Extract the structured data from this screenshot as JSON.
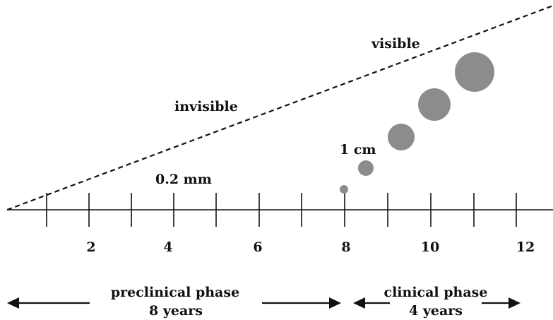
{
  "labels": {
    "visible": "visible",
    "invisible": "invisible",
    "size_small": "0.2 mm",
    "size_large": "1 cm"
  },
  "axis": {
    "tick_labels": [
      "2",
      "4",
      "6",
      "8",
      "10",
      "12"
    ]
  },
  "phases": {
    "preclinical": {
      "title": "preclinical phase",
      "duration": "8 years"
    },
    "clinical": {
      "title": "clinical phase",
      "duration": "4 years"
    }
  },
  "colors": {
    "circle_fill": "#8c8c8c",
    "line": "#111111"
  }
}
